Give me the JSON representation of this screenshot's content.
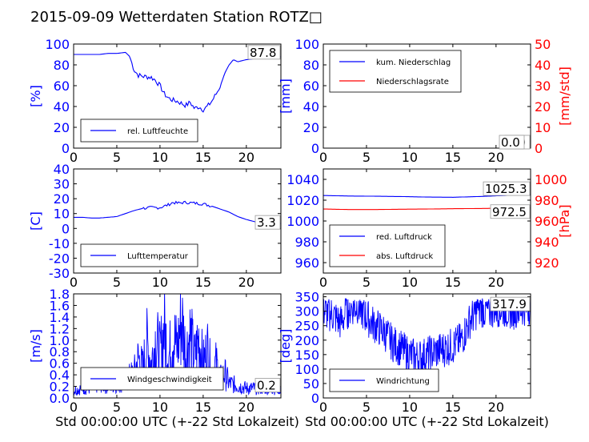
{
  "title": "2015-09-09 Wetterdaten Station ROTZ□",
  "chart_data": [
    {
      "type": "line",
      "ylabel": "[%]",
      "ylim": [
        0,
        100
      ],
      "yticks": [
        0,
        20,
        40,
        60,
        80,
        100
      ],
      "xlim": [
        0,
        24
      ],
      "xticks": [
        0,
        5,
        10,
        15,
        20
      ],
      "xlabel": "",
      "legend": "bottom-left",
      "series": [
        {
          "name": "rel. Luftfeuchte",
          "color": "#0000ff",
          "x": [
            0,
            1,
            2,
            3,
            4,
            5,
            6,
            6.5,
            7,
            7.5,
            8,
            9,
            9.5,
            10,
            10.5,
            11,
            11.5,
            12,
            12.5,
            13,
            13.5,
            14,
            14.5,
            15,
            15.5,
            16,
            16.5,
            17,
            17.5,
            18,
            18.5,
            19,
            20,
            21,
            22,
            23,
            24
          ],
          "y": [
            90,
            90,
            90,
            90,
            91,
            91,
            92,
            88,
            75,
            70,
            69,
            68,
            65,
            60,
            52,
            48,
            46,
            45,
            43,
            41,
            44,
            38,
            40,
            37,
            40,
            45,
            52,
            60,
            72,
            80,
            85,
            83,
            85,
            86,
            87,
            87.5,
            87.8
          ]
        }
      ],
      "last_value": "87.8"
    },
    {
      "type": "line",
      "ylabel": "[mm]",
      "ylabel_right": "[mm/std]",
      "ylim": [
        0,
        100
      ],
      "yticks": [
        0,
        20,
        40,
        60,
        80,
        100
      ],
      "ylim_right": [
        0,
        50
      ],
      "yticks_right": [
        0,
        10,
        20,
        30,
        40,
        50
      ],
      "xlim": [
        0,
        24
      ],
      "xticks": [
        0,
        5,
        10,
        15,
        20
      ],
      "xlabel": "",
      "legend": "top-left",
      "series": [
        {
          "name": "kum. Niederschlag",
          "color": "#0000ff",
          "axis": "left",
          "x": [
            0,
            24
          ],
          "y": [
            0,
            0
          ]
        },
        {
          "name": "Niederschlagsrate",
          "color": "#ff0000",
          "axis": "right",
          "x": [
            0,
            24
          ],
          "y": [
            0,
            0
          ]
        }
      ],
      "last_value": "0.0",
      "last_value_right": "0.0"
    },
    {
      "type": "line",
      "ylabel": "[C]",
      "ylim": [
        -30,
        40
      ],
      "yticks": [
        -30,
        -20,
        -10,
        0,
        10,
        20,
        30,
        40
      ],
      "xlim": [
        0,
        24
      ],
      "xticks": [
        0,
        5,
        10,
        15,
        20
      ],
      "xlabel": "",
      "legend": "bottom-left",
      "series": [
        {
          "name": "Lufttemperatur",
          "color": "#0000ff",
          "x": [
            0,
            1,
            2,
            3,
            4,
            5,
            6,
            7,
            8,
            9,
            10,
            11,
            11.5,
            12,
            13,
            14,
            15,
            16,
            17,
            18,
            19,
            20,
            21,
            22,
            23,
            24
          ],
          "y": [
            7.5,
            7.5,
            7,
            7,
            7.5,
            8,
            10,
            12,
            13.5,
            14,
            14,
            16,
            17.5,
            17,
            17.5,
            17,
            16.5,
            15,
            13,
            11,
            8,
            6,
            4.5,
            3.8,
            3.5,
            3.3
          ]
        }
      ],
      "last_value": "3.3"
    },
    {
      "type": "line",
      "ylabel_right": "[hPa]",
      "ylim": [
        950,
        1050
      ],
      "yticks": [
        960,
        980,
        1000,
        1020,
        1040
      ],
      "ylim_right": [
        910,
        1010
      ],
      "yticks_right": [
        920,
        940,
        960,
        980,
        1000
      ],
      "xlim": [
        0,
        24
      ],
      "xticks": [
        0,
        5,
        10,
        15,
        20
      ],
      "xlabel": "",
      "legend": "bottom-left",
      "series": [
        {
          "name": "red. Luftdruck",
          "color": "#0000ff",
          "axis": "left",
          "x": [
            0,
            3,
            6,
            9,
            12,
            15,
            18,
            21,
            24
          ],
          "y": [
            1024.5,
            1024,
            1023.8,
            1023.5,
            1023,
            1022.8,
            1023.5,
            1024.5,
            1025.3
          ]
        },
        {
          "name": "abs. Luftdruck",
          "color": "#ff0000",
          "axis": "right",
          "x": [
            0,
            3,
            6,
            9,
            12,
            15,
            18,
            21,
            24
          ],
          "y": [
            971.5,
            971,
            971,
            971.3,
            971.5,
            971.8,
            972,
            972.3,
            972.5
          ]
        }
      ],
      "last_value": "1025.3",
      "last_value_right": "972.5"
    },
    {
      "type": "line",
      "ylabel": "[m/s]",
      "ylim": [
        0,
        1.8
      ],
      "yticks": [
        0.0,
        0.2,
        0.4,
        0.6,
        0.8,
        1.0,
        1.2,
        1.4,
        1.6,
        1.8
      ],
      "xlim": [
        0,
        24
      ],
      "xticks": [
        0,
        5,
        10,
        15,
        20
      ],
      "xlabel": "Std 00:00:00 UTC (+-22 Std Lokalzeit)",
      "legend": "bottom-center",
      "series": [
        {
          "name": "Windgeschwindigkeit",
          "color": "#0000ff",
          "x": [
            0,
            1,
            2,
            3,
            4,
            5,
            6,
            7,
            7.5,
            8,
            8.5,
            9,
            9.5,
            10,
            10.5,
            11,
            11.5,
            12,
            12.5,
            13,
            13.5,
            14,
            14.5,
            15,
            15.5,
            16,
            16.5,
            17,
            17.5,
            18,
            19,
            20,
            21,
            22,
            23,
            24
          ],
          "y": [
            0.15,
            0.2,
            0.2,
            0.3,
            0.25,
            0.3,
            0.35,
            0.5,
            0.8,
            0.6,
            1.1,
            0.7,
            1.2,
            0.9,
            1.4,
            0.8,
            1.3,
            1.0,
            1.6,
            0.9,
            1.3,
            0.8,
            1.2,
            0.7,
            1.0,
            0.5,
            0.7,
            0.4,
            0.5,
            0.3,
            0.25,
            0.2,
            0.2,
            0.2,
            0.2,
            0.2
          ]
        }
      ],
      "last_value": "0.2"
    },
    {
      "type": "line",
      "ylabel": "[deg]",
      "ylim": [
        0,
        360
      ],
      "yticks": [
        0,
        50,
        100,
        150,
        200,
        250,
        300,
        350
      ],
      "xlim": [
        0,
        24
      ],
      "xticks": [
        0,
        5,
        10,
        15,
        20
      ],
      "xlabel": "Std 00:00:00 UTC (+-22 Std Lokalzeit)",
      "legend": "bottom-left",
      "series": [
        {
          "name": "Windrichtung",
          "color": "#0000ff",
          "x": [
            0,
            1,
            2,
            3,
            4,
            5,
            6,
            7,
            8,
            9,
            10,
            11,
            12,
            13,
            14,
            15,
            16,
            17,
            18,
            19,
            20,
            21,
            22,
            23,
            24
          ],
          "y": [
            300,
            290,
            260,
            310,
            320,
            280,
            250,
            230,
            190,
            170,
            150,
            140,
            150,
            160,
            170,
            180,
            200,
            270,
            310,
            300,
            310,
            305,
            300,
            310,
            317.9
          ]
        }
      ],
      "last_value": "317.9"
    }
  ]
}
